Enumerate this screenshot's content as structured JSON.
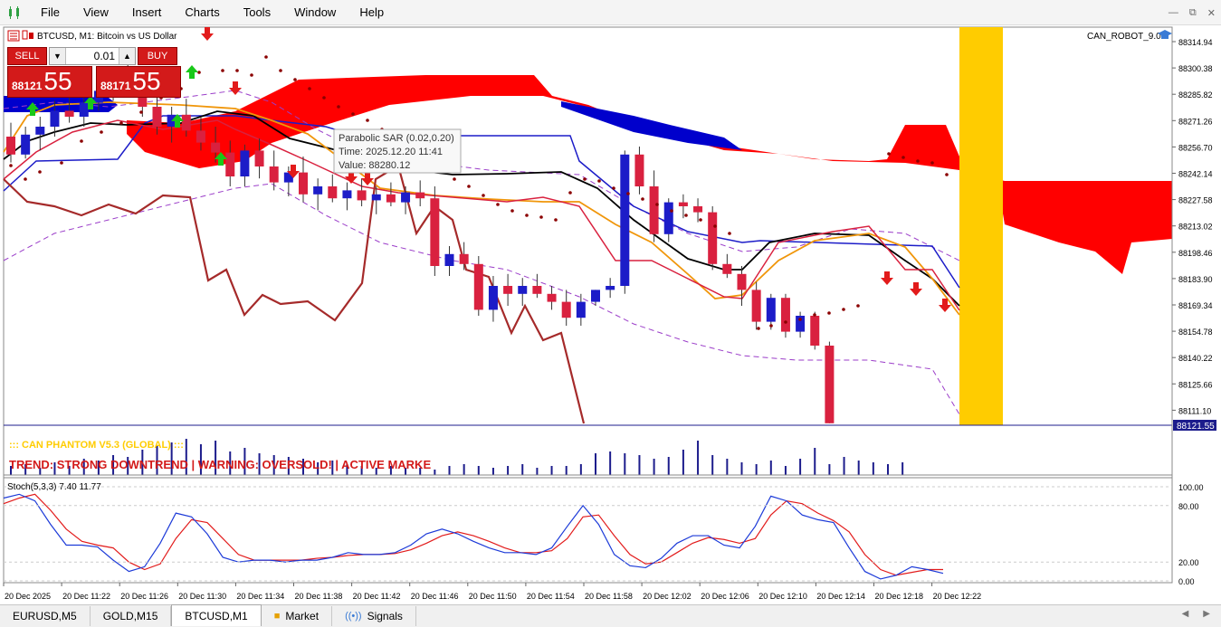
{
  "menu": {
    "items": [
      "File",
      "View",
      "Insert",
      "Charts",
      "Tools",
      "Window",
      "Help"
    ],
    "app_icon": "chart-candles-icon"
  },
  "window_controls": [
    "minimize-icon",
    "restore-icon",
    "close-icon"
  ],
  "chart": {
    "symbol_label": "BTCUSD, M1:  Bitcoin vs US Dollar",
    "expert_label": "CAN_ROBOT_9.0",
    "tooltip": {
      "line1": "Parabolic SAR (0.02,0.20)",
      "line2": "Time: 2025.12.20 11:41",
      "line3": "Value: 88280.12"
    },
    "banner": {
      "title": "::: CAN PHANTOM V5.3 (GLOBAL) :::",
      "status": "TREND: STRONG DOWNTREND  |  WARNING: OVERSOLD!  |  ACTIVE MARKE"
    },
    "price_axis": [
      "88314.94",
      "88300.38",
      "88285.82",
      "88271.26",
      "88256.70",
      "88242.14",
      "88227.58",
      "88213.02",
      "88198.46",
      "88183.90",
      "88169.34",
      "88154.78",
      "88140.22",
      "88125.66",
      "88111.10"
    ],
    "current_price": "88121.55",
    "stoch_label": "Stoch(5,3,3) 7.40 11.77",
    "stoch_axis": [
      "100.00",
      "80.00",
      "20.00",
      "0.00"
    ],
    "time_axis": [
      "20 Dec 2025",
      "20 Dec 11:22",
      "20 Dec 11:26",
      "20 Dec 11:30",
      "20 Dec 11:34",
      "20 Dec 11:38",
      "20 Dec 11:42",
      "20 Dec 11:46",
      "20 Dec 11:50",
      "20 Dec 11:54",
      "20 Dec 11:58",
      "20 Dec 12:02",
      "20 Dec 12:06",
      "20 Dec 12:10",
      "20 Dec 12:14",
      "20 Dec 12:18",
      "20 Dec 12:22"
    ],
    "colors": {
      "bull": "#1c1cc8",
      "bear": "#d9213f",
      "doji": "#000000",
      "cloud_red": "#ff0000",
      "cloud_blue": "#0000cc",
      "cloud_magenta": "#ff33ff",
      "marker_gold": "#ffcc00",
      "sar": "#8b0000"
    }
  },
  "trade_panel": {
    "sell_label": "SELL",
    "buy_label": "BUY",
    "lot_value": "0.01",
    "sell_price_small": "88121",
    "sell_price_big": "55",
    "buy_price_small": "88171",
    "buy_price_big": "55"
  },
  "tabs": [
    {
      "label": "EURUSD,M5"
    },
    {
      "label": "GOLD,M15"
    },
    {
      "label": "BTCUSD,M1"
    },
    {
      "label": "Market"
    },
    {
      "label": "Signals"
    }
  ],
  "chart_data": {
    "type": "candlestick",
    "series": [
      {
        "name": "BTCUSD",
        "candles": [
          {
            "o": 88265,
            "h": 88272,
            "l": 88252,
            "c": 88256
          },
          {
            "o": 88256,
            "h": 88270,
            "l": 88254,
            "c": 88266
          },
          {
            "o": 88266,
            "h": 88275,
            "l": 88258,
            "c": 88270
          },
          {
            "o": 88270,
            "h": 88283,
            "l": 88265,
            "c": 88278
          },
          {
            "o": 88278,
            "h": 88289,
            "l": 88272,
            "c": 88275
          },
          {
            "o": 88275,
            "h": 88285,
            "l": 88270,
            "c": 88282
          },
          {
            "o": 88282,
            "h": 88292,
            "l": 88278,
            "c": 88288
          },
          {
            "o": 88288,
            "h": 88300,
            "l": 88283,
            "c": 88296
          },
          {
            "o": 88296,
            "h": 88302,
            "l": 88288,
            "c": 88290
          },
          {
            "o": 88290,
            "h": 88296,
            "l": 88275,
            "c": 88280
          },
          {
            "o": 88280,
            "h": 88285,
            "l": 88266,
            "c": 88270
          },
          {
            "o": 88270,
            "h": 88280,
            "l": 88262,
            "c": 88276
          },
          {
            "o": 88276,
            "h": 88284,
            "l": 88265,
            "c": 88268
          },
          {
            "o": 88268,
            "h": 88275,
            "l": 88258,
            "c": 88262
          },
          {
            "o": 88262,
            "h": 88270,
            "l": 88252,
            "c": 88257
          },
          {
            "o": 88257,
            "h": 88263,
            "l": 88240,
            "c": 88245
          },
          {
            "o": 88245,
            "h": 88261,
            "l": 88240,
            "c": 88258
          },
          {
            "o": 88258,
            "h": 88264,
            "l": 88244,
            "c": 88250
          },
          {
            "o": 88250,
            "h": 88258,
            "l": 88238,
            "c": 88242
          },
          {
            "o": 88242,
            "h": 88250,
            "l": 88235,
            "c": 88247
          },
          {
            "o": 88247,
            "h": 88255,
            "l": 88232,
            "c": 88236
          },
          {
            "o": 88236,
            "h": 88244,
            "l": 88228,
            "c": 88240
          },
          {
            "o": 88240,
            "h": 88246,
            "l": 88232,
            "c": 88234
          },
          {
            "o": 88234,
            "h": 88242,
            "l": 88228,
            "c": 88238
          },
          {
            "o": 88238,
            "h": 88244,
            "l": 88230,
            "c": 88233
          },
          {
            "o": 88233,
            "h": 88240,
            "l": 88226,
            "c": 88236
          },
          {
            "o": 88236,
            "h": 88242,
            "l": 88230,
            "c": 88232
          },
          {
            "o": 88232,
            "h": 88240,
            "l": 88226,
            "c": 88237
          },
          {
            "o": 88237,
            "h": 88243,
            "l": 88230,
            "c": 88234
          },
          {
            "o": 88234,
            "h": 88240,
            "l": 88195,
            "c": 88200
          },
          {
            "o": 88200,
            "h": 88210,
            "l": 88195,
            "c": 88206
          },
          {
            "o": 88206,
            "h": 88212,
            "l": 88198,
            "c": 88201
          },
          {
            "o": 88201,
            "h": 88205,
            "l": 88175,
            "c": 88178
          },
          {
            "o": 88178,
            "h": 88195,
            "l": 88172,
            "c": 88190
          },
          {
            "o": 88190,
            "h": 88196,
            "l": 88180,
            "c": 88186
          },
          {
            "o": 88186,
            "h": 88194,
            "l": 88180,
            "c": 88190
          },
          {
            "o": 88190,
            "h": 88196,
            "l": 88184,
            "c": 88186
          },
          {
            "o": 88186,
            "h": 88190,
            "l": 88178,
            "c": 88182
          },
          {
            "o": 88182,
            "h": 88188,
            "l": 88170,
            "c": 88174
          },
          {
            "o": 88174,
            "h": 88186,
            "l": 88170,
            "c": 88182
          },
          {
            "o": 88182,
            "h": 88188,
            "l": 88180,
            "c": 88188
          },
          {
            "o": 88188,
            "h": 88194,
            "l": 88184,
            "c": 88190
          },
          {
            "o": 88190,
            "h": 88258,
            "l": 88186,
            "c": 88256
          },
          {
            "o": 88256,
            "h": 88260,
            "l": 88236,
            "c": 88240
          },
          {
            "o": 88240,
            "h": 88248,
            "l": 88212,
            "c": 88216
          },
          {
            "o": 88216,
            "h": 88234,
            "l": 88212,
            "c": 88232
          },
          {
            "o": 88232,
            "h": 88236,
            "l": 88224,
            "c": 88230
          },
          {
            "o": 88230,
            "h": 88234,
            "l": 88222,
            "c": 88227
          },
          {
            "o": 88227,
            "h": 88230,
            "l": 88198,
            "c": 88201
          },
          {
            "o": 88201,
            "h": 88206,
            "l": 88194,
            "c": 88196
          },
          {
            "o": 88196,
            "h": 88200,
            "l": 88180,
            "c": 88188
          },
          {
            "o": 88188,
            "h": 88192,
            "l": 88168,
            "c": 88172
          },
          {
            "o": 88172,
            "h": 88186,
            "l": 88168,
            "c": 88184
          },
          {
            "o": 88184,
            "h": 88186,
            "l": 88164,
            "c": 88167
          },
          {
            "o": 88167,
            "h": 88177,
            "l": 88164,
            "c": 88175
          },
          {
            "o": 88175,
            "h": 88177,
            "l": 88158,
            "c": 88160
          },
          {
            "o": 88160,
            "h": 88162,
            "l": 88121,
            "c": 88121
          }
        ]
      }
    ],
    "ylim": [
      88120,
      88320
    ],
    "stochastic": {
      "main": [
        88,
        92,
        85,
        60,
        38,
        38,
        36,
        22,
        10,
        15,
        40,
        72,
        68,
        50,
        25,
        20,
        22,
        22,
        20,
        22,
        22,
        25,
        30,
        28,
        28,
        30,
        38,
        50,
        55,
        50,
        42,
        35,
        30,
        30,
        28,
        35,
        58,
        80,
        60,
        28,
        16,
        14,
        24,
        40,
        48,
        48,
        38,
        35,
        58,
        90,
        85,
        70,
        65,
        62,
        35,
        10,
        2,
        6,
        15,
        12,
        8
      ],
      "signal": [
        82,
        88,
        92,
        75,
        55,
        42,
        38,
        35,
        20,
        12,
        18,
        45,
        65,
        62,
        45,
        28,
        22,
        22,
        22,
        22,
        24,
        25,
        27,
        28,
        28,
        29,
        33,
        40,
        48,
        52,
        48,
        42,
        35,
        30,
        30,
        32,
        45,
        68,
        70,
        48,
        28,
        18,
        20,
        30,
        40,
        46,
        44,
        40,
        45,
        70,
        85,
        82,
        72,
        64,
        52,
        28,
        12,
        6,
        9,
        12,
        12
      ],
      "ylim": [
        0,
        100
      ]
    },
    "volume": [
      10,
      12,
      8,
      14,
      10,
      18,
      16,
      22,
      20,
      28,
      32,
      36,
      40,
      34,
      38,
      26,
      30,
      24,
      22,
      20,
      18,
      14,
      16,
      12,
      10,
      8,
      10,
      8,
      8,
      6,
      10,
      12,
      10,
      8,
      10,
      12,
      8,
      10,
      10,
      12,
      24,
      26,
      24,
      22,
      18,
      20,
      28,
      38,
      22,
      18,
      14,
      12,
      16,
      10,
      18,
      30,
      12,
      20,
      16,
      14,
      12,
      14
    ]
  }
}
